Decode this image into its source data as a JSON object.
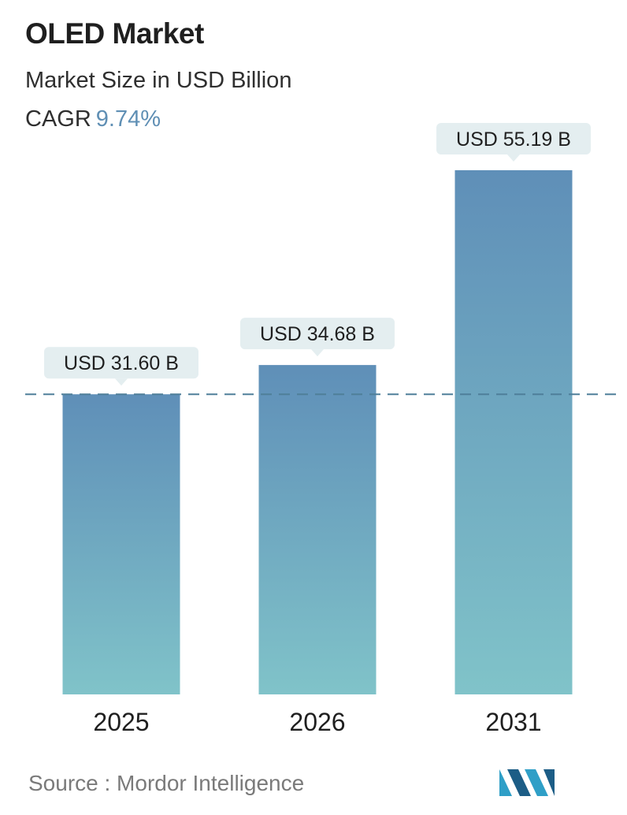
{
  "header": {
    "title": "OLED Market",
    "subtitle": "Market Size in USD Billion",
    "cagr_label": "CAGR",
    "cagr_value": "9.74%"
  },
  "chart_data": {
    "type": "bar",
    "categories": [
      "2025",
      "2026",
      "2031"
    ],
    "values": [
      31.6,
      34.68,
      55.19
    ],
    "data_labels": [
      "USD 31.60 B",
      "USD 34.68 B",
      "USD 55.19 B"
    ],
    "reference_line": {
      "value": 31.6,
      "style": "dashed"
    },
    "ylim": [
      0,
      60
    ],
    "grid": false,
    "legend": "none",
    "colors": {
      "bar_top": "#5f8fb8",
      "bar_bottom": "#80c3c9",
      "label_bg": "#e4eef0",
      "dash": "#4f7f99"
    }
  },
  "footer": {
    "source": "Source :  Mordor Intelligence",
    "logo_icon": "mordor-intelligence-logo-icon"
  }
}
